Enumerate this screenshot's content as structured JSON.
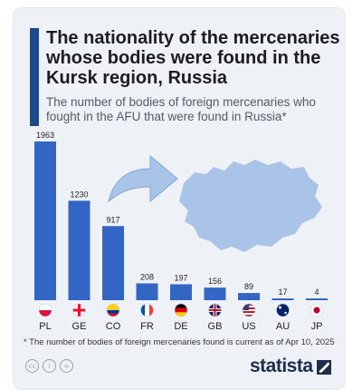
{
  "header": {
    "title": "The nationality of the mercenaries whose bodies were found in the Kursk region, Russia",
    "subtitle": "The number of bodies of foreign mercenaries who fought in the AFU that were found in Russia*"
  },
  "chart_data": {
    "type": "bar",
    "categories": [
      "PL",
      "GE",
      "CO",
      "FR",
      "DE",
      "GB",
      "US",
      "AU",
      "JP"
    ],
    "values": [
      1963,
      1230,
      917,
      208,
      197,
      156,
      89,
      17,
      4
    ],
    "flags": [
      "poland-flag-icon",
      "georgia-flag-icon",
      "colombia-flag-icon",
      "france-flag-icon",
      "germany-flag-icon",
      "uk-flag-icon",
      "us-flag-icon",
      "australia-flag-icon",
      "japan-flag-icon"
    ],
    "ylim": [
      0,
      1963
    ],
    "grid": false,
    "bar_color": "#3365c4",
    "title": "The nationality of the mercenaries whose bodies were found in the Kursk region, Russia",
    "subtitle": "The number of bodies of foreign mercenaries who fought in the AFU that were found in Russia*"
  },
  "footnote": "* The number of bodies of foreign mercenaries found is current as of Apr 10, 2025",
  "license_icons": [
    "cc-icon",
    "by-icon",
    "equals-icon"
  ],
  "brand": {
    "name": "statista"
  },
  "colors": {
    "accent": "#1e4a8d",
    "bar": "#3365c4",
    "map": "#a9c4e6",
    "arrow": "#a9c4e6"
  }
}
